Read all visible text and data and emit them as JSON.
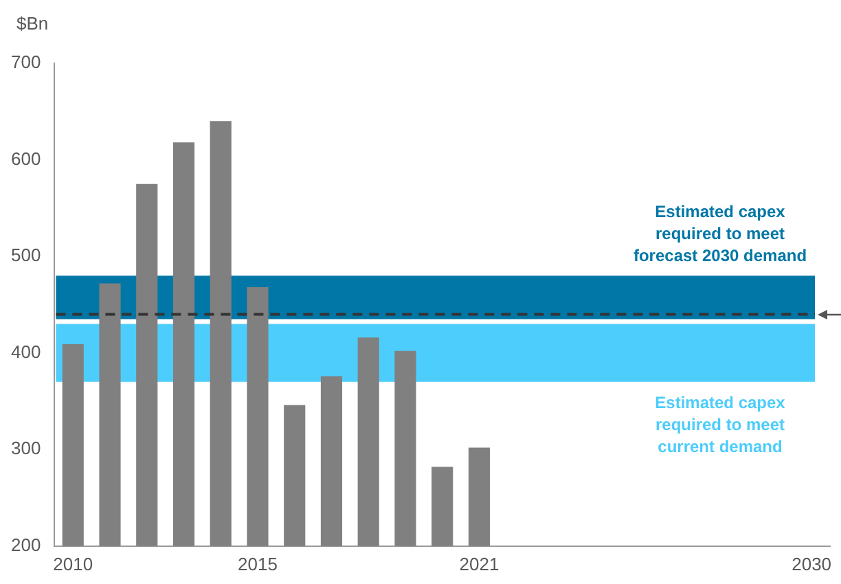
{
  "chart_data": {
    "type": "bar",
    "ylabel": "$Bn",
    "categories": [
      "2010",
      null,
      null,
      null,
      null,
      "2015",
      null,
      null,
      null,
      null,
      null,
      "2021",
      null,
      null,
      null,
      null,
      null,
      null,
      null,
      null,
      "2030"
    ],
    "values": [
      409,
      472,
      575,
      618,
      640,
      468,
      346,
      376,
      416,
      402,
      282,
      302,
      null,
      null,
      null,
      null,
      null,
      null,
      null,
      null,
      null
    ],
    "color": "#808080",
    "ylim": [
      200,
      700
    ],
    "yticks": [
      200,
      300,
      400,
      500,
      600,
      700
    ],
    "grid": false,
    "legend": false,
    "bands": [
      {
        "axis": "y",
        "from": 435,
        "to": 480,
        "label": "Estimated capex required to meet forecast 2030 demand",
        "color": "#0077a6"
      },
      {
        "axis": "y",
        "from": 370,
        "to": 430,
        "label": "Estimated capex required to meet current demand",
        "color": "#4dcdfb"
      }
    ],
    "ref_lines": [
      {
        "axis": "y",
        "value": 440,
        "line_style": "dashed",
        "color": "#333333"
      }
    ]
  }
}
